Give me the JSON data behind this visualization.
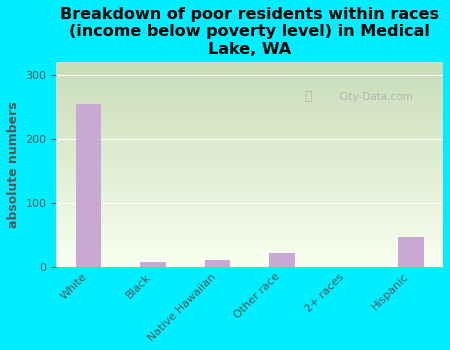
{
  "title": "Breakdown of poor residents within races\n(income below poverty level) in Medical\nLake, WA",
  "categories": [
    "White",
    "Black",
    "Native Hawaiian",
    "Other race",
    "2+ races",
    "Hispanic"
  ],
  "values": [
    255,
    7,
    10,
    22,
    0,
    47
  ],
  "bar_color": "#c9a8d4",
  "ylabel": "absolute numbers",
  "ylim": [
    0,
    320
  ],
  "yticks": [
    0,
    100,
    200,
    300
  ],
  "background_color": "#00eeff",
  "plot_bg_color_top": "#c8ddb8",
  "plot_bg_color_bottom": "#f8fff0",
  "watermark": "City-Data.com",
  "title_fontsize": 11.5,
  "ylabel_fontsize": 9,
  "tick_fontsize": 8,
  "label_color": "#555555",
  "grid_color": "#ffffff"
}
